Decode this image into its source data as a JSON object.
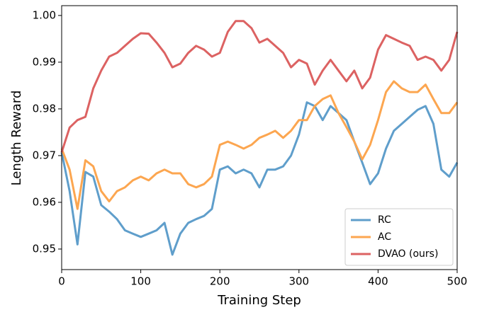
{
  "chart_data": {
    "type": "line",
    "xlabel": "Training Step",
    "ylabel": "Length Reward",
    "x": [
      0,
      10,
      20,
      30,
      40,
      50,
      60,
      70,
      80,
      90,
      100,
      110,
      120,
      130,
      140,
      150,
      160,
      170,
      180,
      190,
      200,
      210,
      220,
      230,
      240,
      250,
      260,
      270,
      280,
      290,
      300,
      310,
      320,
      330,
      340,
      350,
      360,
      370,
      380,
      390,
      400,
      410,
      420,
      430,
      440,
      450,
      460,
      470,
      480,
      490,
      500
    ],
    "series": [
      {
        "name": "RC",
        "color": "#5f9ecb",
        "values": [
          0.9707,
          0.9624,
          0.951,
          0.9665,
          0.9655,
          0.9594,
          0.958,
          0.9564,
          0.954,
          0.9533,
          0.9526,
          0.9533,
          0.954,
          0.9556,
          0.9488,
          0.9533,
          0.9556,
          0.9564,
          0.9571,
          0.9586,
          0.967,
          0.9677,
          0.9662,
          0.967,
          0.9662,
          0.9632,
          0.967,
          0.967,
          0.9677,
          0.97,
          0.9745,
          0.9814,
          0.9806,
          0.9776,
          0.9806,
          0.9791,
          0.9776,
          0.973,
          0.9685,
          0.9639,
          0.9662,
          0.9715,
          0.9753,
          0.9768,
          0.9783,
          0.9798,
          0.9806,
          0.9768,
          0.967,
          0.9655,
          0.9685
        ]
      },
      {
        "name": "AC",
        "color": "#fca650",
        "values": [
          0.9715,
          0.967,
          0.9586,
          0.969,
          0.9677,
          0.9624,
          0.9602,
          0.9624,
          0.9632,
          0.9647,
          0.9655,
          0.9647,
          0.9662,
          0.967,
          0.9662,
          0.9662,
          0.9639,
          0.9632,
          0.9639,
          0.9655,
          0.9723,
          0.973,
          0.9723,
          0.9715,
          0.9723,
          0.9738,
          0.9745,
          0.9753,
          0.9738,
          0.9753,
          0.9776,
          0.9776,
          0.9806,
          0.9821,
          0.9829,
          0.9791,
          0.9761,
          0.973,
          0.9692,
          0.9723,
          0.9776,
          0.9836,
          0.9859,
          0.9844,
          0.9836,
          0.9836,
          0.9852,
          0.9821,
          0.9791,
          0.9791,
          0.9814
        ]
      },
      {
        "name": "DVAO (ours)",
        "color": "#dc6262",
        "values": [
          0.9707,
          0.976,
          0.9776,
          0.9783,
          0.9844,
          0.9882,
          0.9912,
          0.992,
          0.9935,
          0.995,
          0.9962,
          0.9961,
          0.9942,
          0.992,
          0.9889,
          0.9897,
          0.992,
          0.9935,
          0.9927,
          0.9912,
          0.992,
          0.9965,
          0.9988,
          0.9988,
          0.9973,
          0.9942,
          0.995,
          0.9935,
          0.992,
          0.9889,
          0.9905,
          0.9897,
          0.9852,
          0.9882,
          0.9905,
          0.9882,
          0.9859,
          0.9882,
          0.9844,
          0.9867,
          0.9927,
          0.9958,
          0.995,
          0.9942,
          0.9935,
          0.9905,
          0.9912,
          0.9905,
          0.9882,
          0.9905,
          0.9965
        ]
      }
    ],
    "xlim": [
      0,
      500
    ],
    "xticks": [
      0,
      100,
      200,
      300,
      400,
      500
    ],
    "ylim": [
      0.9456,
      1.0021
    ],
    "yticks": [
      0.95,
      0.96,
      0.97,
      0.98,
      0.99,
      {
        "value": 1,
        "label": "1.00"
      }
    ],
    "legend": "lower right",
    "grid": false
  }
}
